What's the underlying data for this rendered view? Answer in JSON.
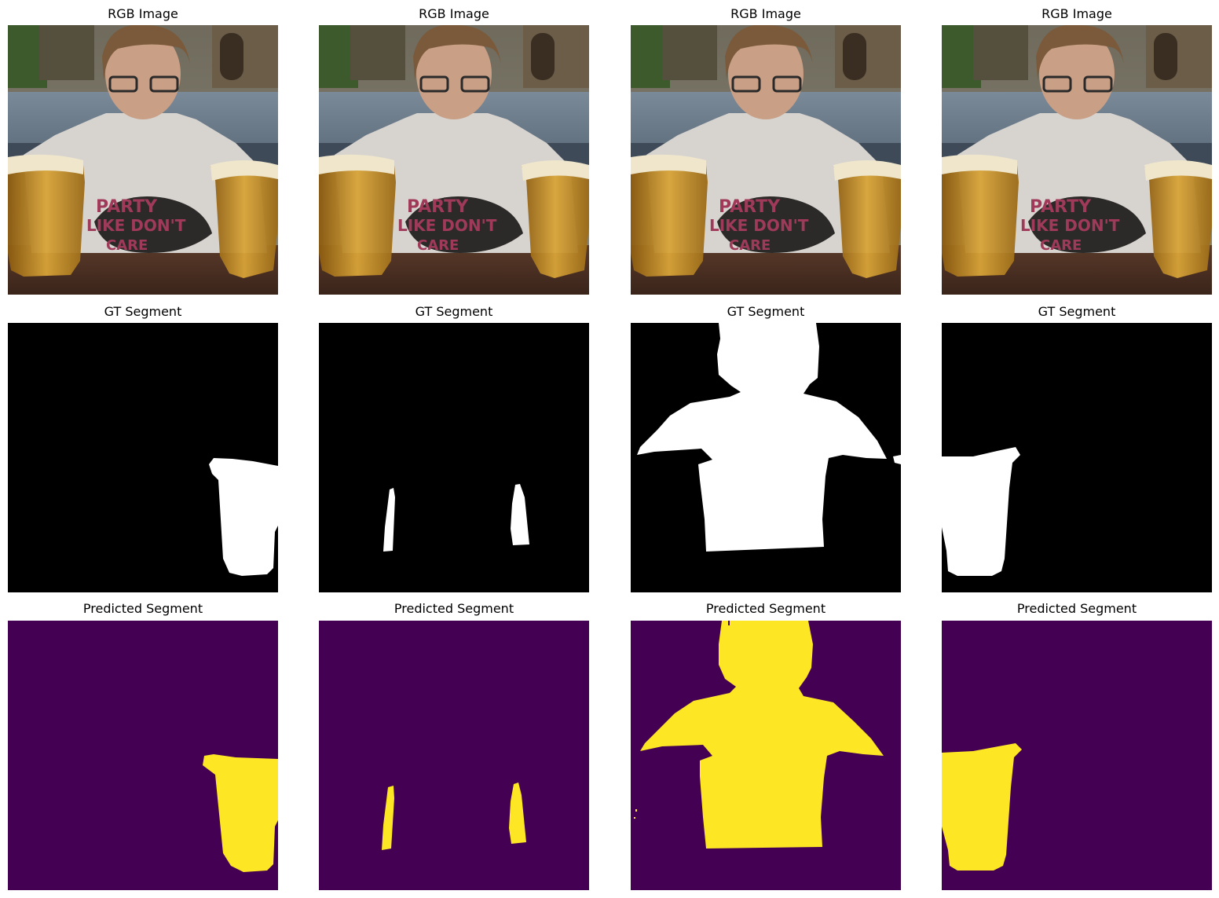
{
  "figure": {
    "columns": 4,
    "rows": [
      {
        "row": "rgb",
        "title": "RGB Image",
        "panels": [
          "rgb-1",
          "rgb-2",
          "rgb-3",
          "rgb-4"
        ]
      },
      {
        "row": "gt",
        "title": "GT Segment",
        "panels": [
          "gt-1",
          "gt-2",
          "gt-3",
          "gt-4"
        ]
      },
      {
        "row": "pred",
        "title": "Predicted Segment",
        "panels": [
          "pred-1",
          "pred-2",
          "pred-3",
          "pred-4"
        ]
      }
    ],
    "titles": {
      "rgb": "RGB Image",
      "gt": "GT Segment",
      "pred": "Predicted Segment"
    }
  },
  "colors": {
    "gt_background": "#000000",
    "gt_foreground": "#ffffff",
    "pred_background": "#440154",
    "pred_foreground": "#fde725"
  },
  "icons": {
    "rgb_panel": "photo-of-person-with-beer-pitchers",
    "gt_panel": "binary-mask",
    "pred_panel": "viridis-mask"
  }
}
